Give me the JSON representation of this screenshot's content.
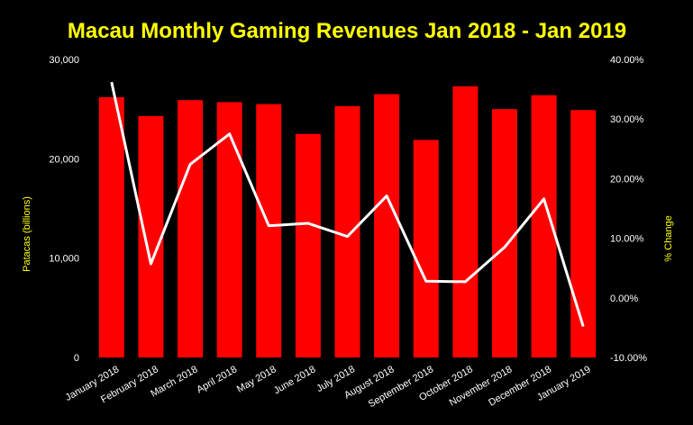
{
  "chart_data": {
    "type": "bar",
    "title": "Macau Monthly Gaming Revenues Jan 2018 - Jan 2019",
    "ylabel": "Patacas (billions)",
    "y2label": "% Change",
    "categories": [
      "January 2018",
      "February 2018",
      "March 2018",
      "April 2018",
      "May 2018",
      "June 2018",
      "July 2018",
      "August 2018",
      "September 2018",
      "October 2018",
      "November 2018",
      "December 2018",
      "January 2019"
    ],
    "series": [
      {
        "axis": "left",
        "kind": "bar",
        "color": "#ff0000",
        "values": [
          26200,
          24300,
          25900,
          25700,
          25500,
          22500,
          25300,
          26500,
          21900,
          27300,
          25000,
          26400,
          24900
        ]
      },
      {
        "axis": "right",
        "kind": "line",
        "color": "#ffffff",
        "values": [
          36.2,
          5.7,
          22.4,
          27.5,
          12.1,
          12.5,
          10.3,
          17.1,
          2.8,
          2.7,
          8.5,
          16.6,
          -4.8
        ]
      }
    ],
    "ylim": [
      0,
      30000
    ],
    "yticks": [
      "0",
      "10,000",
      "20,000",
      "30,000"
    ],
    "y2lim": [
      -10,
      40
    ],
    "y2ticks": [
      "-10.00%",
      "0.00%",
      "10.00%",
      "20.00%",
      "30.00%",
      "40.00%"
    ],
    "grid": false,
    "legend": "none"
  }
}
